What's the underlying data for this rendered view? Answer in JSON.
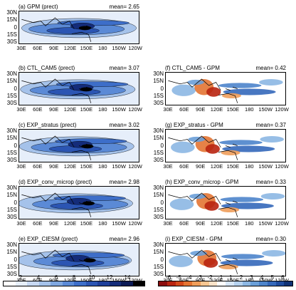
{
  "colors": {
    "precip": [
      "#ffffff",
      "#e6eefa",
      "#c7d8f2",
      "#a5c2ea",
      "#7fa7e0",
      "#5b8ad6",
      "#3d6ec9",
      "#2b55b3",
      "#1e3f9a",
      "#142c7a",
      "#0a1a55",
      "#000000"
    ],
    "diff": [
      "#8a0c0c",
      "#b8240f",
      "#d2481b",
      "#e37433",
      "#ef9d5a",
      "#f7c692",
      "#fbe2c8",
      "#ffffff",
      "#d7e6f6",
      "#b5d1ee",
      "#8cb7e3",
      "#6a9fd8",
      "#4d84cb",
      "#3468ba",
      "#1f4c9e",
      "#0f3275"
    ]
  },
  "axes": {
    "lat": [
      "30N",
      "15N",
      "0",
      "15S",
      "30S"
    ],
    "lon": [
      "30E",
      "60E",
      "90E",
      "120E",
      "150E",
      "180",
      "150W",
      "120W"
    ]
  },
  "left_panels": [
    {
      "title": "(a) GPM (prect)",
      "mean": "mean= 2.65"
    },
    {
      "title": "(b) CTL_CAM5 (prect)",
      "mean": "mean= 3.07"
    },
    {
      "title": "(c) EXP_stratus (prect)",
      "mean": "mean= 3.02"
    },
    {
      "title": "(d) EXP_conv_microp (prect)",
      "mean": "mean= 2.98"
    },
    {
      "title": "(e) EXP_CIESM (prect)",
      "mean": "mean= 2.96"
    }
  ],
  "right_panels": [
    {
      "title": "(f) CTL_CAM5 - GPM",
      "mean": "mean= 0.42"
    },
    {
      "title": "(g) EXP_stratus - GPM",
      "mean": "mean= 0.37"
    },
    {
      "title": "(h) EXP_conv_microp - GPM",
      "mean": "mean= 0.33"
    },
    {
      "title": "(i) EXP_CIESM - GPM",
      "mean": "mean= 0.30"
    }
  ],
  "colorbar_left": [
    "2",
    "4",
    "6",
    "8",
    "10",
    "12",
    "14"
  ],
  "colorbar_right": [
    "-6",
    "-5",
    "-4",
    "-3",
    "-2",
    "-1",
    "1",
    "2",
    "3",
    "4",
    "5",
    "6"
  ]
}
